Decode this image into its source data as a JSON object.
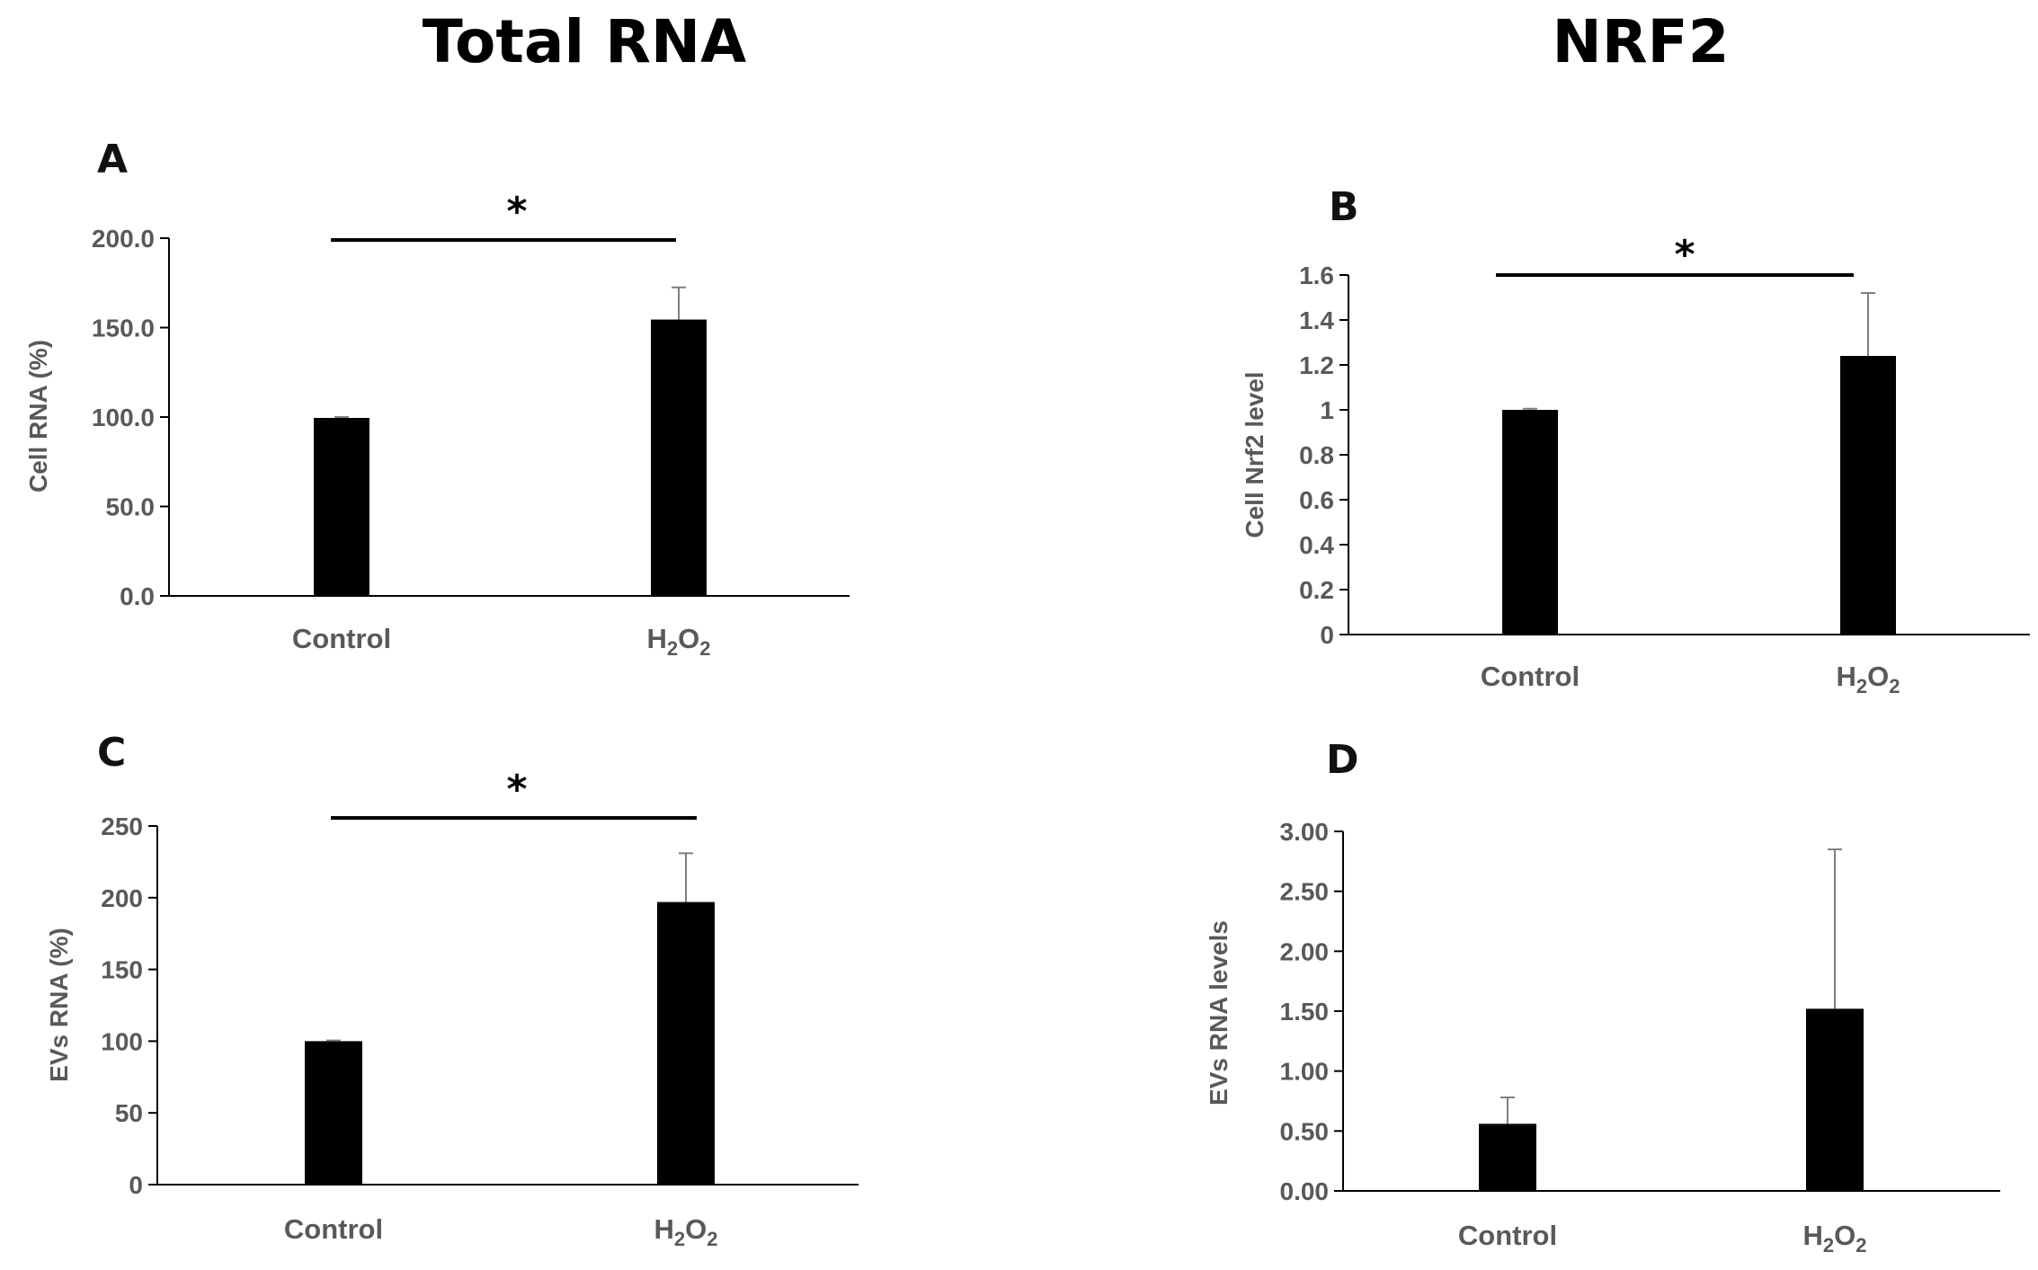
{
  "titles": {
    "left": "Total RNA",
    "right": "NRF2"
  },
  "chart_data": [
    {
      "panel": "A",
      "type": "bar",
      "categories": [
        "Control",
        "H2O2"
      ],
      "values": [
        99.5,
        154.5
      ],
      "errors": [
        0.5,
        18
      ],
      "ylabel": "Cell RNA (%)",
      "ylim": [
        0,
        200
      ],
      "yticks": [
        0,
        50,
        100,
        150,
        200
      ],
      "ytick_labels": [
        "0.0",
        "50.0",
        "100.0",
        "150.0",
        "200.0"
      ],
      "significance": "*",
      "grid": false
    },
    {
      "panel": "B",
      "type": "bar",
      "categories": [
        "Control",
        "H2O2"
      ],
      "values": [
        1.0,
        1.24
      ],
      "errors": [
        0.005,
        0.28
      ],
      "ylabel": "Cell Nrf2 level",
      "ylim": [
        0,
        1.6
      ],
      "yticks": [
        0,
        0.2,
        0.4,
        0.6,
        0.8,
        1,
        1.2,
        1.4,
        1.6
      ],
      "ytick_labels": [
        "0",
        "0.2",
        "0.4",
        "0.6",
        "0.8",
        "1",
        "1.2",
        "1.4",
        "1.6"
      ],
      "significance": "*",
      "grid": false
    },
    {
      "panel": "C",
      "type": "bar",
      "categories": [
        "Control",
        "H2O2"
      ],
      "values": [
        100,
        197
      ],
      "errors": [
        0.5,
        34
      ],
      "ylabel": "EVs RNA (%)",
      "ylim": [
        0,
        250
      ],
      "yticks": [
        0,
        50,
        100,
        150,
        200,
        250
      ],
      "ytick_labels": [
        "0",
        "50",
        "100",
        "150",
        "200",
        "250"
      ],
      "significance": "*",
      "grid": false
    },
    {
      "panel": "D",
      "type": "bar",
      "categories": [
        "Control",
        "H2O2"
      ],
      "values": [
        0.56,
        1.52
      ],
      "errors": [
        0.22,
        1.33
      ],
      "ylabel": "EVs RNA levels",
      "ylim": [
        0,
        3
      ],
      "yticks": [
        0,
        0.5,
        1,
        1.5,
        2,
        2.5,
        3
      ],
      "ytick_labels": [
        "0.00",
        "0.50",
        "1.00",
        "1.50",
        "2.00",
        "2.50",
        "3.00"
      ],
      "significance": "",
      "grid": false
    }
  ]
}
